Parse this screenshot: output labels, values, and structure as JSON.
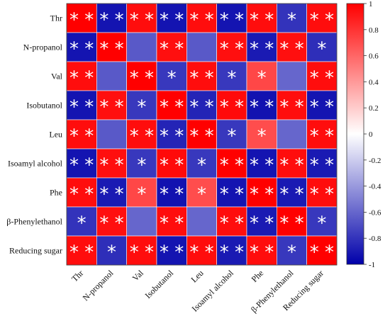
{
  "chart_data": {
    "type": "heatmap",
    "rows": [
      "Thr",
      "N-propanol",
      "Val",
      "Isobutanol",
      "Leu",
      "Isoamyl alcohol",
      "Phe",
      "β-Phenylethanol",
      "Reducing sugar"
    ],
    "columns": [
      "Thr",
      "N-propanol",
      "Val",
      "Isobutanol",
      "Leu",
      "Isoamyl alcohol",
      "Phe",
      "β-Phenylethanol",
      "Reducing sugar"
    ],
    "values": [
      [
        1.0,
        -0.92,
        0.95,
        -0.92,
        0.95,
        -0.92,
        0.95,
        -0.8,
        0.95
      ],
      [
        -0.92,
        1.0,
        -0.65,
        0.94,
        -0.65,
        0.94,
        -0.9,
        0.94,
        -0.82
      ],
      [
        0.95,
        -0.65,
        1.0,
        -0.78,
        0.95,
        -0.78,
        0.72,
        -0.6,
        0.95
      ],
      [
        -0.92,
        0.94,
        -0.78,
        1.0,
        -0.86,
        0.96,
        -0.93,
        0.95,
        -0.92
      ],
      [
        0.95,
        -0.65,
        0.95,
        -0.86,
        1.0,
        -0.78,
        0.7,
        -0.6,
        0.95
      ],
      [
        -0.92,
        0.94,
        -0.78,
        0.96,
        -0.78,
        1.0,
        -0.92,
        0.95,
        -0.9
      ],
      [
        0.95,
        -0.9,
        0.72,
        -0.93,
        0.7,
        -0.92,
        1.0,
        -0.9,
        0.95
      ],
      [
        -0.8,
        0.94,
        -0.6,
        0.95,
        -0.6,
        0.95,
        -0.9,
        1.0,
        -0.78
      ],
      [
        0.95,
        -0.82,
        0.95,
        -0.92,
        0.95,
        -0.9,
        0.95,
        -0.78,
        1.0
      ]
    ],
    "significance": [
      [
        "**",
        "**",
        "**",
        "**",
        "**",
        "**",
        "**",
        "*",
        "**"
      ],
      [
        "**",
        "**",
        "",
        "**",
        "",
        "**",
        "**",
        "**",
        "*"
      ],
      [
        "**",
        "",
        "**",
        "*",
        "**",
        "*",
        "*",
        "",
        "**"
      ],
      [
        "**",
        "**",
        "*",
        "**",
        "**",
        "**",
        "**",
        "**",
        "**"
      ],
      [
        "**",
        "",
        "**",
        "**",
        "**",
        "*",
        "*",
        "",
        "**"
      ],
      [
        "**",
        "**",
        "*",
        "**",
        "*",
        "**",
        "**",
        "**",
        "**"
      ],
      [
        "**",
        "**",
        "*",
        "**",
        "*",
        "**",
        "**",
        "**",
        "**"
      ],
      [
        "*",
        "**",
        "",
        "**",
        "",
        "**",
        "**",
        "**",
        "*"
      ],
      [
        "**",
        "*",
        "**",
        "**",
        "**",
        "**",
        "**",
        "*",
        "**"
      ]
    ],
    "colorbar": {
      "min": -1,
      "max": 1,
      "ticks": [
        1,
        0.8,
        0.6,
        0.4,
        0.2,
        0,
        -0.2,
        -0.4,
        -0.6,
        -0.8,
        -1
      ],
      "tick_labels": [
        "1",
        "0.8",
        "0.6",
        "0.4",
        "0.2",
        "0",
        "-0.2",
        "-0.4",
        "-0.6",
        "-0.8",
        "-1"
      ],
      "colors": {
        "negative": "#0000aa",
        "zero": "#ffffff",
        "positive": "#ff0000"
      }
    }
  }
}
